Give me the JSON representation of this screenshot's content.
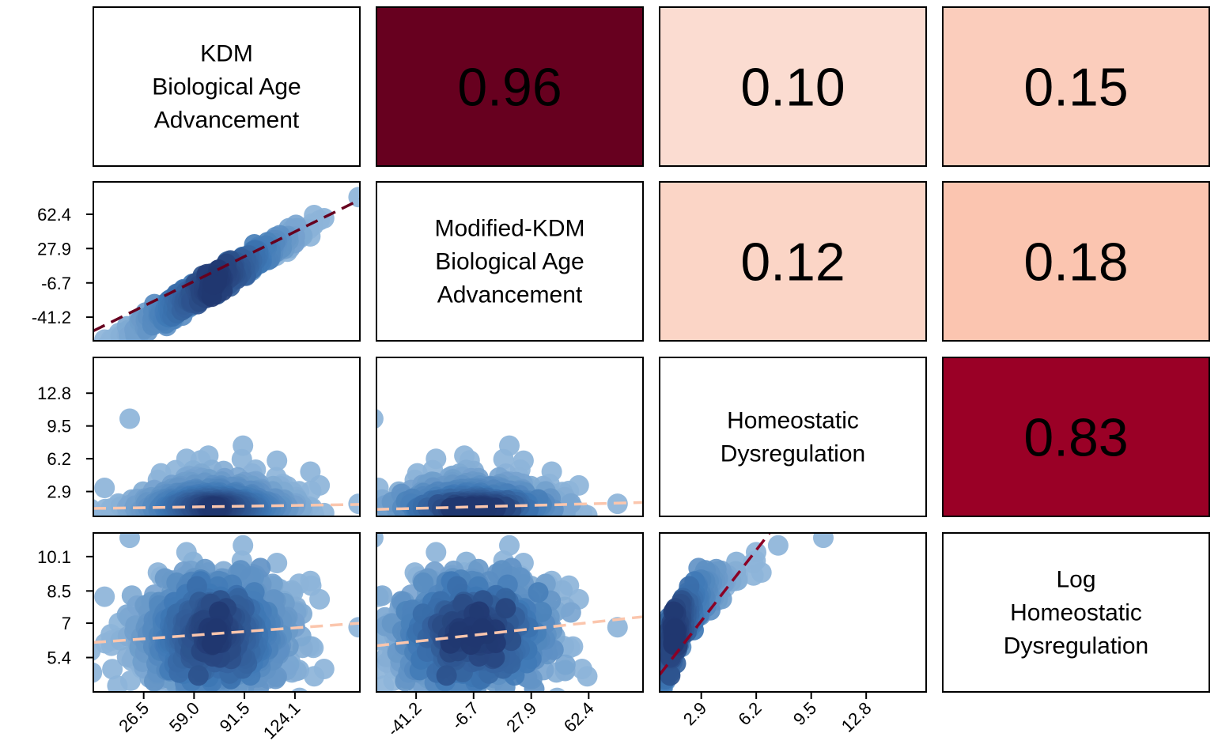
{
  "chart_data": {
    "type": "scatter",
    "title": "",
    "variables": [
      {
        "label_lines": [
          "KDM",
          "Biological Age",
          "Advancement"
        ]
      },
      {
        "label_lines": [
          "Modified-KDM",
          "Biological Age",
          "Advancement"
        ]
      },
      {
        "label_lines": [
          "Homeostatic",
          "Dysregulation"
        ]
      },
      {
        "label_lines": [
          "Log",
          "Homeostatic",
          "Dysregulation"
        ]
      }
    ],
    "ticks": [
      {
        "values": [
          26.5,
          59.0,
          91.5,
          124.1
        ],
        "labels": [
          "26.5",
          "59.0",
          "91.5",
          "124.1"
        ],
        "range": [
          -6,
          166
        ]
      },
      {
        "values": [
          -41.2,
          -6.7,
          27.9,
          62.4
        ],
        "labels": [
          "-41.2",
          "-6.7",
          "27.9",
          "62.4"
        ],
        "range": [
          -65,
          95
        ]
      },
      {
        "values": [
          2.9,
          6.2,
          9.5,
          12.8
        ],
        "labels": [
          "2.9",
          "6.2",
          "9.5",
          "12.8"
        ],
        "range": [
          0.4,
          16.4
        ]
      },
      {
        "values": [
          5.4,
          7,
          8.5,
          10.1
        ],
        "labels": [
          "5.4",
          "7",
          "8.5",
          "10.1"
        ],
        "range": [
          3.8,
          11.2
        ]
      }
    ],
    "correlations": [
      {
        "row": 0,
        "col": 1,
        "value": "0.96",
        "color": "#67001f"
      },
      {
        "row": 0,
        "col": 2,
        "value": "0.10",
        "color": "#fbdcd1"
      },
      {
        "row": 0,
        "col": 3,
        "value": "0.15",
        "color": "#fbcdbc"
      },
      {
        "row": 1,
        "col": 2,
        "value": "0.12",
        "color": "#fbd5c6"
      },
      {
        "row": 1,
        "col": 3,
        "value": "0.18",
        "color": "#fbc5b0"
      },
      {
        "row": 2,
        "col": 3,
        "value": "0.83",
        "color": "#9a0026"
      }
    ],
    "fit_lines": [
      {
        "row": 1,
        "col": 0,
        "color": "#67001f",
        "x": [
          -6,
          166
        ],
        "y": [
          -55,
          77
        ]
      },
      {
        "row": 2,
        "col": 0,
        "color": "#fbc6ad",
        "x": [
          -6,
          166
        ],
        "y": [
          1.2,
          1.6
        ]
      },
      {
        "row": 2,
        "col": 1,
        "color": "#fbc6ad",
        "x": [
          -65,
          95
        ],
        "y": [
          1.1,
          1.8
        ]
      },
      {
        "row": 3,
        "col": 0,
        "color": "#fbc6ad",
        "x": [
          -6,
          166
        ],
        "y": [
          6.1,
          7.0
        ]
      },
      {
        "row": 3,
        "col": 1,
        "color": "#fbc6ad",
        "x": [
          -65,
          95
        ],
        "y": [
          5.95,
          7.3
        ]
      },
      {
        "row": 3,
        "col": 2,
        "color": "#8b0025",
        "x": [
          0.4,
          7.0
        ],
        "y": [
          4.6,
          11.2
        ]
      }
    ],
    "point_colors": {
      "light": "#8db4d9",
      "mid": "#3e78b5",
      "dark": "#1b2a62"
    }
  }
}
